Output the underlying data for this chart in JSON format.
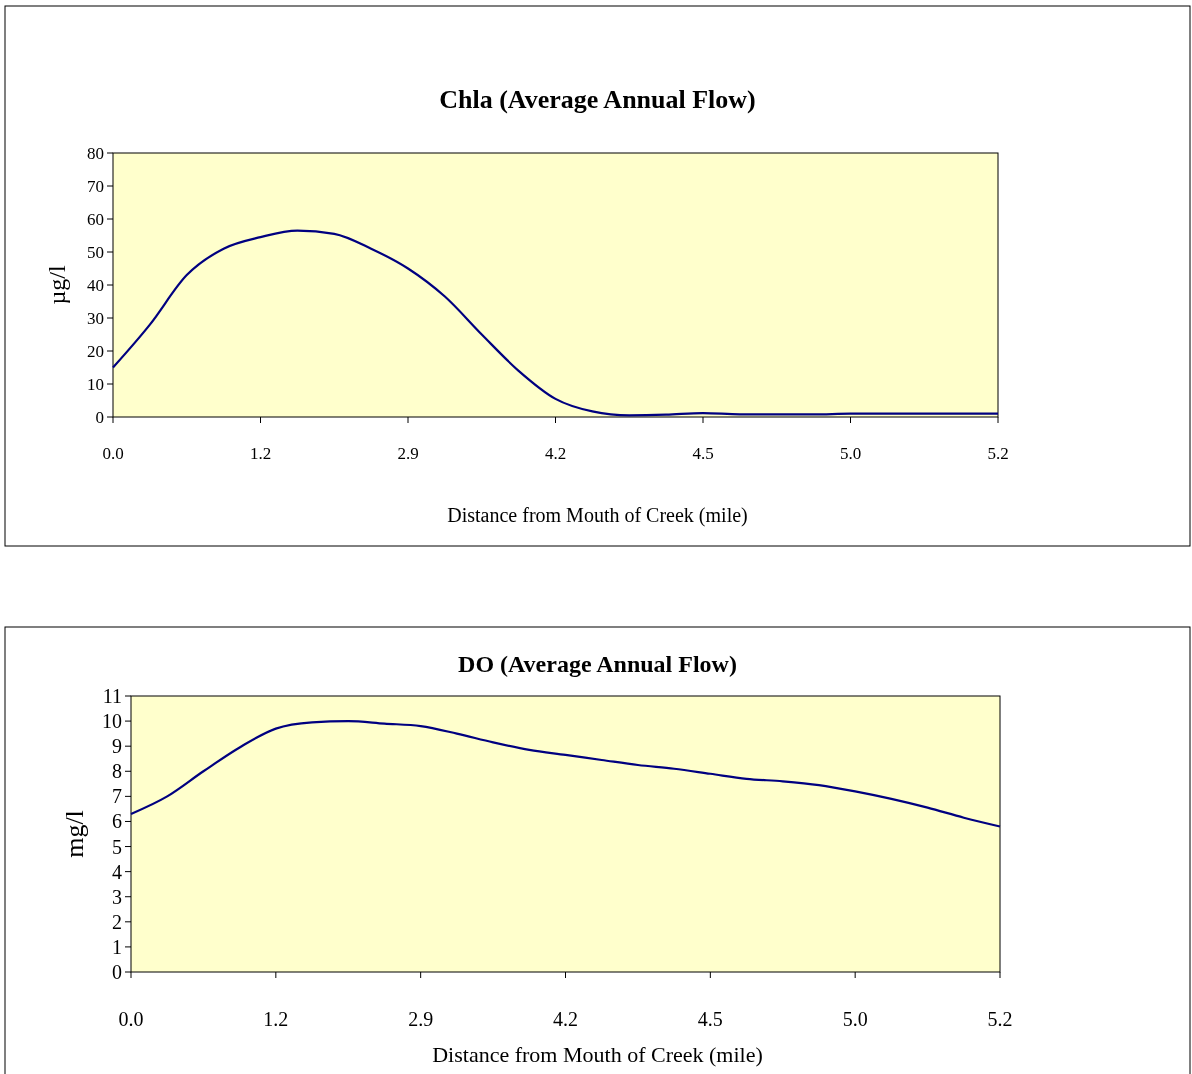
{
  "chart_data": [
    {
      "type": "line",
      "title": "Chla (Average Annual Flow)",
      "xlabel": "Distance from Mouth of Creek (mile)",
      "ylabel": "µg/l",
      "categories": [
        "0.0",
        null,
        null,
        null,
        "1.2",
        null,
        null,
        null,
        "2.9",
        null,
        null,
        null,
        "4.2",
        null,
        null,
        null,
        "4.5",
        null,
        null,
        null,
        "5.0",
        null,
        null,
        null,
        "5.2"
      ],
      "series": [
        {
          "color": "#000080",
          "values": [
            15,
            28,
            43,
            51,
            54.5,
            56.5,
            55.5,
            51,
            45,
            36.5,
            25,
            14,
            5.5,
            1.7,
            0.5,
            0.7,
            1.2,
            0.8,
            0.8,
            0.8,
            1,
            1,
            1,
            1,
            1
          ]
        }
      ],
      "ylim": [
        0,
        80
      ],
      "yticks": [
        0,
        10,
        20,
        30,
        40,
        50,
        60,
        70,
        80
      ],
      "grid": false
    },
    {
      "type": "line",
      "title": "DO (Average Annual Flow)",
      "xlabel": "Distance from Mouth of Creek (mile)",
      "ylabel": "mg/l",
      "categories": [
        "0.0",
        null,
        null,
        null,
        "1.2",
        null,
        null,
        null,
        "2.9",
        null,
        null,
        null,
        "4.2",
        null,
        null,
        null,
        "4.5",
        null,
        null,
        null,
        "5.0",
        null,
        null,
        null,
        "5.2"
      ],
      "series": [
        {
          "color": "#000080",
          "values": [
            6.3,
            7.0,
            8.0,
            8.95,
            9.7,
            9.95,
            10.0,
            9.9,
            9.8,
            9.5,
            9.15,
            8.85,
            8.65,
            8.45,
            8.25,
            8.1,
            7.9,
            7.7,
            7.6,
            7.45,
            7.2,
            6.9,
            6.55,
            6.15,
            5.8
          ]
        }
      ],
      "ylim": [
        0,
        11
      ],
      "yticks": [
        0,
        1,
        2,
        3,
        4,
        5,
        6,
        7,
        8,
        9,
        10,
        11
      ],
      "grid": false
    }
  ]
}
